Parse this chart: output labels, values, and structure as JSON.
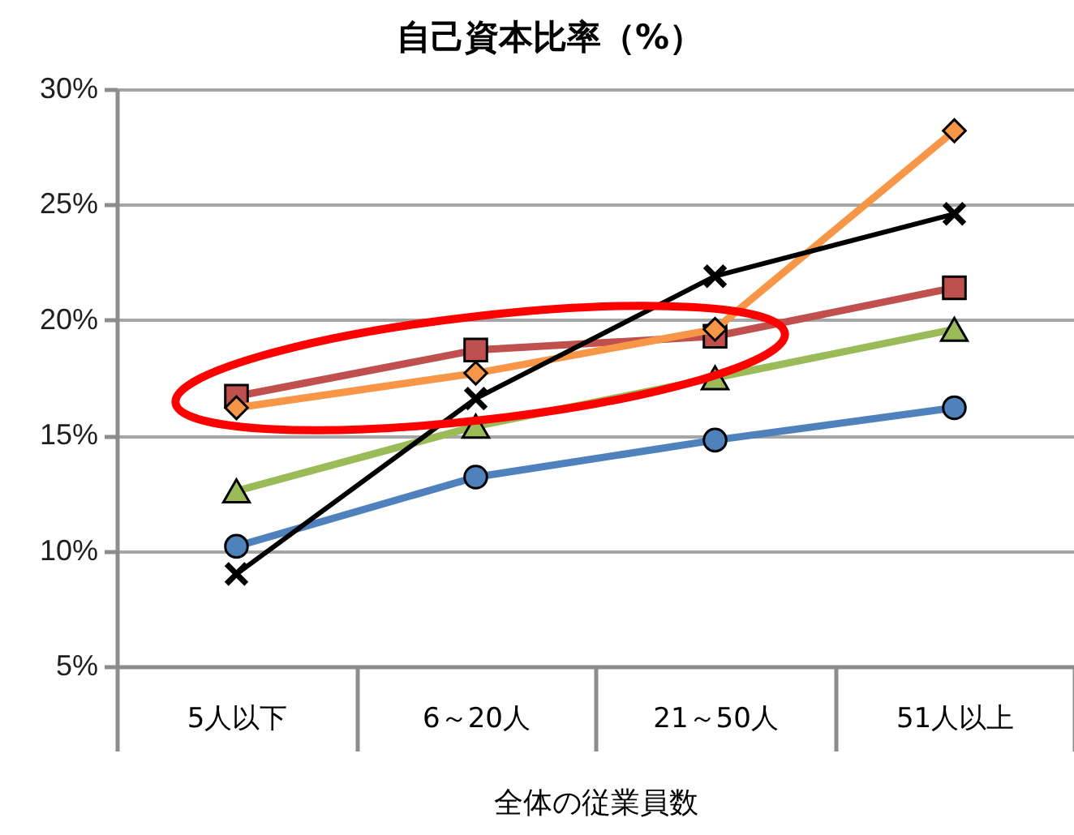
{
  "chart_data": {
    "type": "line",
    "title": "自己資本比率（%）",
    "xlabel": "全体の従業員数",
    "categories": [
      "5人以下",
      "6～20人",
      "21～50人",
      "51人以上"
    ],
    "series": [
      {
        "color": "#4f81bd",
        "marker": "circle",
        "values": [
          10.2,
          13.2,
          14.8,
          16.2
        ]
      },
      {
        "color": "#c0504d",
        "marker": "square",
        "values": [
          16.7,
          18.7,
          19.3,
          21.4
        ]
      },
      {
        "color": "#9bbb59",
        "marker": "triangle",
        "values": [
          12.6,
          15.4,
          17.5,
          19.6
        ]
      },
      {
        "color": "#f79646",
        "marker": "diamond",
        "values": [
          16.2,
          17.7,
          19.6,
          28.2
        ]
      },
      {
        "color": "#000000",
        "marker": "cross",
        "values": [
          9.0,
          16.6,
          21.9,
          24.6
        ]
      }
    ],
    "ylim": [
      5,
      30
    ],
    "yticks": [
      {
        "value": 5,
        "label": "5%"
      },
      {
        "value": 10,
        "label": "10%"
      },
      {
        "value": 15,
        "label": "15%"
      },
      {
        "value": 20,
        "label": "20%"
      },
      {
        "value": 25,
        "label": "25%"
      },
      {
        "value": 30,
        "label": "30%"
      }
    ],
    "grid": "y"
  }
}
